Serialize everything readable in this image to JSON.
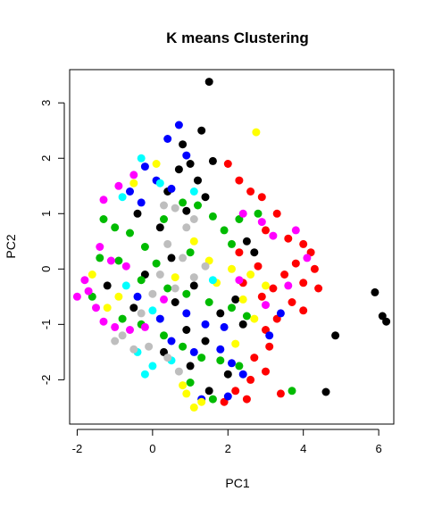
{
  "chart_data": {
    "type": "scatter",
    "title": "K means Clustering",
    "xlabel": "PC1",
    "ylabel": "PC2",
    "xlim": [
      -2.2,
      6.4
    ],
    "ylim": [
      -2.8,
      3.6
    ],
    "xticks": [
      -2,
      0,
      2,
      4,
      6
    ],
    "yticks": [
      -2,
      -1,
      0,
      1,
      2,
      3
    ],
    "xtick_labels": [
      "-2",
      "0",
      "2",
      "4",
      "6"
    ],
    "ytick_labels": [
      "-2",
      "-1",
      "0",
      "1",
      "2",
      "3"
    ],
    "grid": false,
    "legend": "none",
    "series": [
      {
        "color": "#000000",
        "points": [
          [
            1.5,
            3.38
          ],
          [
            1.3,
            2.5
          ],
          [
            0.8,
            2.25
          ],
          [
            1.0,
            1.9
          ],
          [
            1.6,
            1.95
          ],
          [
            0.7,
            1.8
          ],
          [
            1.2,
            1.6
          ],
          [
            0.4,
            1.4
          ],
          [
            1.4,
            1.3
          ],
          [
            0.9,
            1.05
          ],
          [
            -0.4,
            1.0
          ],
          [
            0.2,
            0.75
          ],
          [
            2.5,
            0.5
          ],
          [
            2.7,
            0.3
          ],
          [
            0.5,
            0.2
          ],
          [
            -0.2,
            -0.1
          ],
          [
            1.1,
            -0.3
          ],
          [
            -1.2,
            -0.3
          ],
          [
            2.2,
            -0.55
          ],
          [
            0.6,
            -0.6
          ],
          [
            1.8,
            -0.8
          ],
          [
            -0.5,
            -0.7
          ],
          [
            0.9,
            -1.1
          ],
          [
            1.4,
            -1.3
          ],
          [
            2.4,
            -1.0
          ],
          [
            0.3,
            -1.5
          ],
          [
            1.0,
            -1.75
          ],
          [
            2.0,
            -1.9
          ],
          [
            1.5,
            -2.2
          ],
          [
            5.9,
            -0.42
          ],
          [
            6.1,
            -0.85
          ],
          [
            6.2,
            -0.95
          ],
          [
            4.85,
            -1.2
          ],
          [
            4.6,
            -2.22
          ]
        ]
      },
      {
        "color": "#ff0000",
        "points": [
          [
            2.0,
            1.9
          ],
          [
            2.3,
            1.6
          ],
          [
            2.6,
            1.4
          ],
          [
            2.9,
            1.3
          ],
          [
            3.3,
            1.0
          ],
          [
            3.0,
            0.7
          ],
          [
            3.6,
            0.55
          ],
          [
            4.0,
            0.45
          ],
          [
            4.2,
            0.3
          ],
          [
            3.8,
            0.1
          ],
          [
            4.3,
            0.0
          ],
          [
            3.5,
            -0.1
          ],
          [
            4.0,
            -0.25
          ],
          [
            4.4,
            -0.35
          ],
          [
            3.2,
            -0.35
          ],
          [
            3.7,
            -0.6
          ],
          [
            4.0,
            -0.75
          ],
          [
            3.3,
            -0.9
          ],
          [
            3.0,
            -1.1
          ],
          [
            3.1,
            -1.4
          ],
          [
            2.7,
            -1.6
          ],
          [
            3.0,
            -1.85
          ],
          [
            2.6,
            -2.0
          ],
          [
            2.2,
            -2.2
          ],
          [
            2.5,
            -2.35
          ],
          [
            1.9,
            -2.4
          ],
          [
            3.4,
            -2.25
          ],
          [
            2.9,
            -0.5
          ],
          [
            2.4,
            -0.25
          ],
          [
            2.8,
            0.05
          ],
          [
            2.3,
            0.3
          ]
        ]
      },
      {
        "color": "#00bb00",
        "points": [
          [
            -1.3,
            0.9
          ],
          [
            -1.0,
            0.75
          ],
          [
            -0.6,
            0.65
          ],
          [
            -0.2,
            0.4
          ],
          [
            0.3,
            0.9
          ],
          [
            0.8,
            1.2
          ],
          [
            1.2,
            1.15
          ],
          [
            1.6,
            0.95
          ],
          [
            1.9,
            0.7
          ],
          [
            2.1,
            0.45
          ],
          [
            2.3,
            0.9
          ],
          [
            -1.4,
            0.2
          ],
          [
            -0.9,
            0.15
          ],
          [
            -0.3,
            -0.2
          ],
          [
            0.4,
            -0.35
          ],
          [
            0.9,
            -0.45
          ],
          [
            1.5,
            -0.6
          ],
          [
            2.1,
            -0.7
          ],
          [
            2.5,
            -0.85
          ],
          [
            -0.8,
            -0.9
          ],
          [
            -0.3,
            -1.0
          ],
          [
            0.3,
            -1.2
          ],
          [
            0.8,
            -1.4
          ],
          [
            1.3,
            -1.6
          ],
          [
            1.8,
            -1.65
          ],
          [
            2.3,
            -1.75
          ],
          [
            1.0,
            -2.05
          ],
          [
            1.6,
            -2.35
          ],
          [
            3.7,
            -2.2
          ],
          [
            -1.6,
            -0.5
          ],
          [
            0.1,
            0.1
          ],
          [
            1.0,
            0.3
          ],
          [
            2.8,
            1.0
          ]
        ]
      },
      {
        "color": "#0000ff",
        "points": [
          [
            0.7,
            2.6
          ],
          [
            0.4,
            2.35
          ],
          [
            0.9,
            2.05
          ],
          [
            -0.2,
            1.85
          ],
          [
            0.1,
            1.6
          ],
          [
            0.5,
            1.45
          ],
          [
            -0.6,
            1.4
          ],
          [
            -0.3,
            1.2
          ],
          [
            0.9,
            -0.8
          ],
          [
            1.4,
            -1.0
          ],
          [
            1.9,
            -1.05
          ],
          [
            0.5,
            -1.3
          ],
          [
            1.1,
            -1.5
          ],
          [
            1.8,
            -1.45
          ],
          [
            2.1,
            -1.7
          ],
          [
            2.4,
            -1.9
          ],
          [
            2.0,
            -2.3
          ],
          [
            1.3,
            -2.35
          ],
          [
            3.1,
            -1.2
          ],
          [
            0.2,
            -0.9
          ],
          [
            -0.4,
            -0.5
          ],
          [
            3.4,
            -0.8
          ]
        ]
      },
      {
        "color": "#ffff00",
        "points": [
          [
            2.75,
            2.47
          ],
          [
            0.1,
            1.9
          ],
          [
            -0.5,
            1.55
          ],
          [
            1.1,
            0.5
          ],
          [
            1.5,
            0.15
          ],
          [
            2.1,
            0.0
          ],
          [
            2.6,
            -0.1
          ],
          [
            3.0,
            -0.3
          ],
          [
            2.4,
            -0.55
          ],
          [
            1.7,
            -0.25
          ],
          [
            -1.6,
            -0.1
          ],
          [
            -1.2,
            -0.7
          ],
          [
            -0.9,
            -0.5
          ],
          [
            0.6,
            -0.15
          ],
          [
            0.8,
            -2.1
          ],
          [
            0.9,
            -2.25
          ],
          [
            1.1,
            -2.5
          ],
          [
            1.3,
            -2.4
          ],
          [
            2.2,
            -1.35
          ],
          [
            2.7,
            -0.9
          ]
        ]
      },
      {
        "color": "#00ffff",
        "points": [
          [
            -0.3,
            2.0
          ],
          [
            0.2,
            1.55
          ],
          [
            -0.8,
            1.3
          ],
          [
            1.1,
            1.4
          ],
          [
            1.6,
            -0.2
          ],
          [
            0.0,
            -0.75
          ],
          [
            -0.4,
            -1.5
          ],
          [
            0.0,
            -1.75
          ],
          [
            -0.2,
            -1.9
          ],
          [
            0.5,
            -1.65
          ],
          [
            -0.7,
            -0.3
          ]
        ]
      },
      {
        "color": "#ff00ff",
        "points": [
          [
            -1.3,
            1.25
          ],
          [
            -0.9,
            1.5
          ],
          [
            -0.5,
            1.7
          ],
          [
            -1.8,
            -0.2
          ],
          [
            -2.0,
            -0.5
          ],
          [
            -1.7,
            -0.4
          ],
          [
            -1.5,
            -0.7
          ],
          [
            -1.3,
            -0.95
          ],
          [
            -1.0,
            -1.05
          ],
          [
            -0.6,
            -1.1
          ],
          [
            -0.2,
            -1.05
          ],
          [
            -1.1,
            0.15
          ],
          [
            -0.7,
            0.05
          ],
          [
            -1.4,
            0.4
          ],
          [
            2.4,
            1.0
          ],
          [
            2.9,
            0.85
          ],
          [
            3.2,
            0.6
          ],
          [
            3.8,
            0.7
          ],
          [
            4.1,
            0.2
          ],
          [
            3.6,
            -0.3
          ],
          [
            3.0,
            -0.65
          ],
          [
            2.3,
            -0.2
          ],
          [
            0.3,
            -0.55
          ]
        ]
      },
      {
        "color": "#bebebe",
        "points": [
          [
            0.6,
            1.1
          ],
          [
            0.9,
            0.75
          ],
          [
            0.4,
            0.45
          ],
          [
            0.8,
            0.2
          ],
          [
            0.2,
            -0.1
          ],
          [
            0.6,
            -0.35
          ],
          [
            1.1,
            -0.15
          ],
          [
            1.4,
            0.05
          ],
          [
            0.0,
            -0.45
          ],
          [
            -0.3,
            -0.8
          ],
          [
            -0.8,
            -1.2
          ],
          [
            -1.0,
            -1.3
          ],
          [
            -0.5,
            -1.45
          ],
          [
            -0.1,
            -1.4
          ],
          [
            0.4,
            -1.6
          ],
          [
            0.7,
            -1.85
          ],
          [
            1.1,
            0.9
          ],
          [
            0.3,
            1.15
          ]
        ]
      }
    ]
  }
}
